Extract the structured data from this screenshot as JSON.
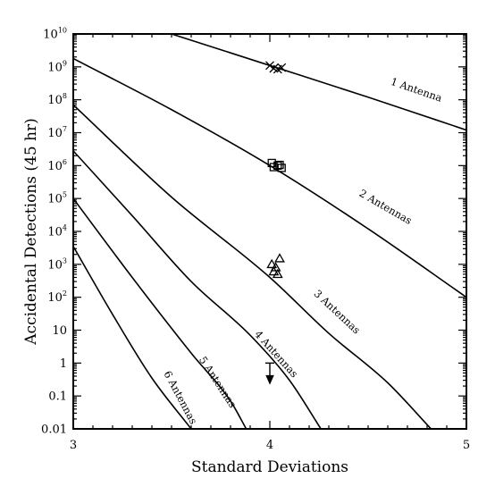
{
  "chart_data": {
    "type": "line",
    "xlabel": "Standard Deviations",
    "ylabel": "Accidental Detections (45 hr)",
    "xlim": [
      3,
      5
    ],
    "ylim": [
      0.01,
      10000000000
    ],
    "yscale": "log",
    "grid": false,
    "legend": "none",
    "x_ticks": [
      {
        "value": 3,
        "label": "3"
      },
      {
        "value": 4,
        "label": "4"
      },
      {
        "value": 5,
        "label": "5"
      }
    ],
    "y_ticks": [
      {
        "value": 10000000000,
        "base": "10",
        "exp": "10"
      },
      {
        "value": 1000000000,
        "base": "10",
        "exp": "9"
      },
      {
        "value": 100000000,
        "base": "10",
        "exp": "8"
      },
      {
        "value": 10000000,
        "base": "10",
        "exp": "7"
      },
      {
        "value": 1000000,
        "base": "10",
        "exp": "6"
      },
      {
        "value": 100000,
        "base": "10",
        "exp": "5"
      },
      {
        "value": 10000,
        "base": "10",
        "exp": "4"
      },
      {
        "value": 1000,
        "base": "10",
        "exp": "3"
      },
      {
        "value": 100,
        "base": "10",
        "exp": "2"
      },
      {
        "value": 10,
        "base": "10",
        "exp": ""
      },
      {
        "value": 1,
        "base": "1",
        "exp": ""
      },
      {
        "value": 0.1,
        "base": "0.1",
        "exp": ""
      },
      {
        "value": 0.01,
        "base": "0.01",
        "exp": ""
      }
    ],
    "series": [
      {
        "name": "1 Antenna",
        "x": [
          3.5,
          4.0,
          4.5,
          5.0
        ],
        "y": [
          10000000000,
          1100000000,
          120000000,
          12000000
        ],
        "label_x": 4.74,
        "label_y": 160000000,
        "label_angle": 19
      },
      {
        "name": "2 Antennas",
        "x": [
          3.0,
          3.5,
          4.0,
          4.5,
          5.0
        ],
        "y": [
          1800000000,
          50000000,
          1000000,
          12000,
          100
        ],
        "label_x": 4.58,
        "label_y": 45000,
        "label_angle": 30
      },
      {
        "name": "3 Antennas",
        "x": [
          3.0,
          3.5,
          4.0,
          4.3,
          4.6,
          4.82
        ],
        "y": [
          70000000,
          110000,
          400,
          8,
          0.25,
          0.01
        ],
        "label_x": 4.33,
        "label_y": 30,
        "label_angle": 43
      },
      {
        "name": "4 Antennas",
        "x": [
          3.0,
          3.3,
          3.6,
          3.9,
          4.1,
          4.26
        ],
        "y": [
          2800000,
          30000,
          300,
          7,
          0.3,
          0.01
        ],
        "label_x": 4.02,
        "label_y": 1.6,
        "label_angle": 48
      },
      {
        "name": "5 Antennas",
        "x": [
          3.0,
          3.3,
          3.6,
          3.8,
          3.88
        ],
        "y": [
          100000,
          400,
          2,
          0.07,
          0.01
        ],
        "label_x": 3.72,
        "label_y": 0.23,
        "label_angle": 57
      },
      {
        "name": "6 Antennas",
        "x": [
          3.0,
          3.2,
          3.4,
          3.6
        ],
        "y": [
          3500,
          30,
          0.35,
          0.01
        ],
        "label_x": 3.53,
        "label_y": 0.08,
        "label_angle": 62
      }
    ],
    "markers": [
      {
        "type": "cross",
        "points": [
          [
            4.0,
            1100000000
          ],
          [
            4.02,
            900000000
          ],
          [
            4.04,
            850000000
          ],
          [
            4.06,
            950000000
          ]
        ]
      },
      {
        "type": "square",
        "points": [
          [
            4.01,
            1200000
          ],
          [
            4.02,
            900000
          ],
          [
            4.04,
            1000000
          ],
          [
            4.06,
            850000
          ],
          [
            4.05,
            1050000
          ]
        ]
      },
      {
        "type": "triangle",
        "points": [
          [
            4.01,
            1000
          ],
          [
            4.02,
            600
          ],
          [
            4.04,
            500
          ],
          [
            4.05,
            1500
          ],
          [
            4.03,
            800
          ]
        ]
      },
      {
        "type": "upper-limit",
        "points": [
          [
            4.0,
            1
          ]
        ]
      }
    ]
  }
}
